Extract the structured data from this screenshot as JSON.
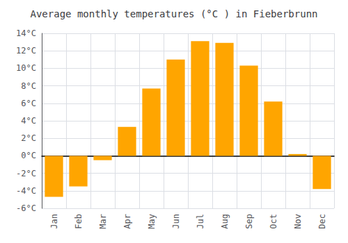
{
  "chart_data": {
    "type": "bar",
    "title": "Average monthly temperatures (°C ) in Fieberbrunn",
    "categories": [
      "Jan",
      "Feb",
      "Mar",
      "Apr",
      "May",
      "Jun",
      "Jul",
      "Aug",
      "Sep",
      "Oct",
      "Nov",
      "Dec"
    ],
    "values": [
      -4.7,
      -3.5,
      -0.5,
      3.3,
      7.7,
      11.0,
      13.1,
      12.9,
      10.3,
      6.2,
      0.2,
      -3.8
    ],
    "color": "#FFA500",
    "ylim": [
      -6,
      14
    ],
    "yticks": [
      {
        "value": -6,
        "label": "-6°C"
      },
      {
        "value": -4,
        "label": "-4°C"
      },
      {
        "value": -2,
        "label": "-2°C"
      },
      {
        "value": 0,
        "label": "0°C"
      },
      {
        "value": 2,
        "label": "2°C"
      },
      {
        "value": 4,
        "label": "4°C"
      },
      {
        "value": 6,
        "label": "6°C"
      },
      {
        "value": 8,
        "label": "8°C"
      },
      {
        "value": 10,
        "label": "10°C"
      },
      {
        "value": 12,
        "label": "12°C"
      },
      {
        "value": 14,
        "label": "14°C"
      }
    ],
    "grid": true
  }
}
